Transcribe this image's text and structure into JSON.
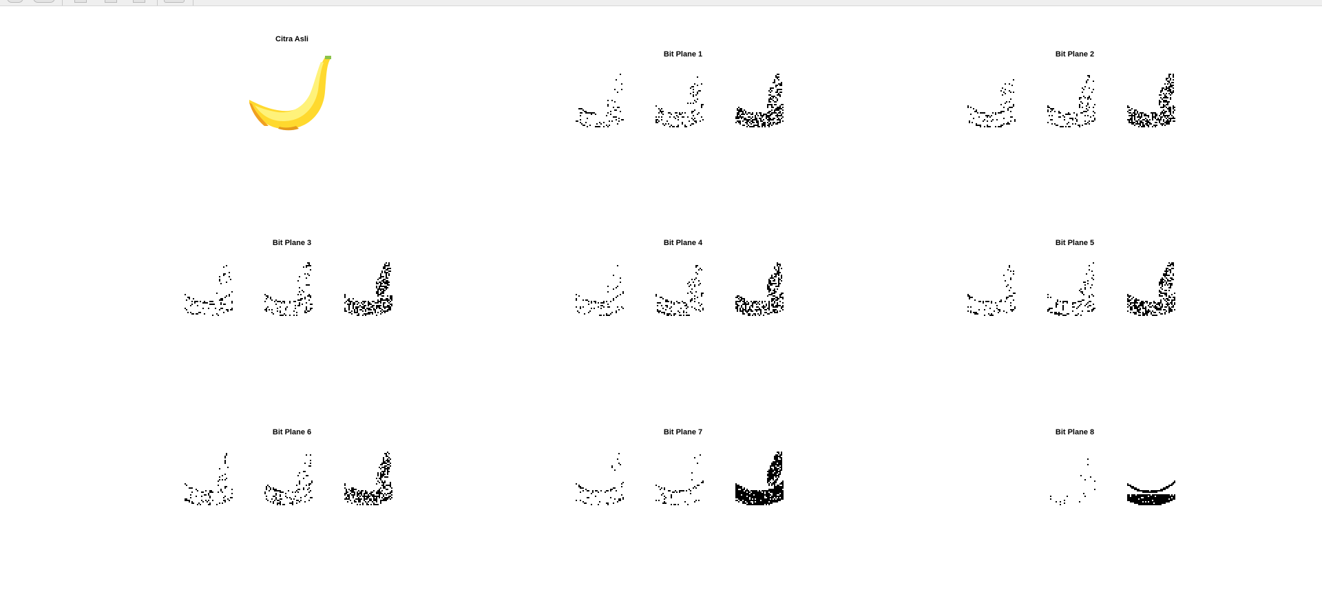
{
  "toolbar": {
    "buttons": [
      "zoom-in-icon",
      "zoom-out-icon",
      "pan-icon",
      "rotate-icon",
      "datatip-icon",
      "colorbar-icon"
    ]
  },
  "figure": {
    "subplots": [
      {
        "title": "Citra Asli",
        "kind": "color"
      },
      {
        "title": "Bit Plane 1",
        "kind": "bitplane",
        "bit": 1
      },
      {
        "title": "Bit Plane 2",
        "kind": "bitplane",
        "bit": 2
      },
      {
        "title": "Bit Plane 3",
        "kind": "bitplane",
        "bit": 3
      },
      {
        "title": "Bit Plane 4",
        "kind": "bitplane",
        "bit": 4
      },
      {
        "title": "Bit Plane 5",
        "kind": "bitplane",
        "bit": 5
      },
      {
        "title": "Bit Plane 6",
        "kind": "bitplane",
        "bit": 6
      },
      {
        "title": "Bit Plane 7",
        "kind": "bitplane",
        "bit": 7
      },
      {
        "title": "Bit Plane 8",
        "kind": "bitplane",
        "bit": 8
      }
    ],
    "colors": {
      "banana_light": "#fff27a",
      "banana_mid": "#ffd92e",
      "banana_dark": "#f0a020",
      "banana_tip": "#8bc34a",
      "plane": "#000000"
    }
  }
}
